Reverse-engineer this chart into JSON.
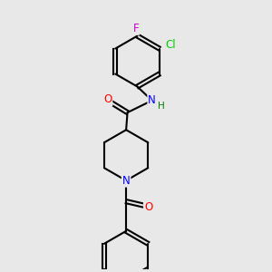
{
  "background_color": "#e8e8e8",
  "bond_color": "#000000",
  "atom_colors": {
    "O": "#ff0000",
    "N": "#0000ff",
    "Cl": "#00cc00",
    "F": "#cc00cc",
    "H": "#008000"
  },
  "figsize": [
    3.0,
    3.0
  ],
  "dpi": 100,
  "xlim": [
    0,
    10
  ],
  "ylim": [
    0,
    10
  ]
}
